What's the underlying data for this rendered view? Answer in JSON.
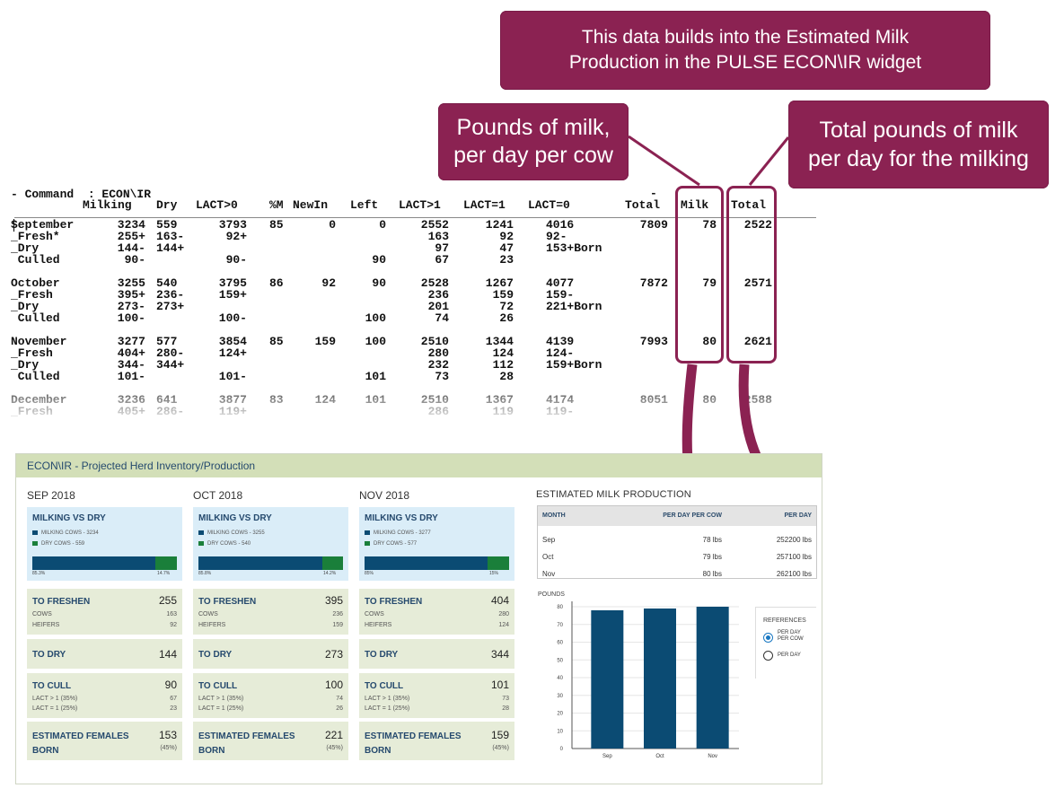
{
  "callouts": {
    "top": "This data builds into the Estimated Milk\nProduction in the PULSE ECON\\IR widget",
    "left": "Pounds of milk,\nper day per cow",
    "right": "Total pounds of milk\nper day for the milking"
  },
  "terminal": {
    "command": "- Command  : ECON\\IR",
    "dash": "-",
    "headers": [
      "Milking",
      "Dry",
      "LACT>0",
      "%M",
      "NewIn",
      "Left",
      "LACT>1",
      "LACT=1",
      "LACT=0",
      "Total",
      "Milk",
      "Total"
    ],
    "rows": [
      {
        "label": "September",
        "milking": "3234",
        "dry": "559",
        "lact0": "3793",
        "pm": "85",
        "newin": "0",
        "left": "0",
        "lact_gt1": "2552",
        "lact_eq1": "1241",
        "lact_eq0": "4016",
        "total": "7809",
        "milk": "78",
        "total2": "2522"
      },
      {
        "label": "_Fresh*",
        "milking": "255+",
        "dry": "163-",
        "lact0": "92+",
        "pm": "",
        "newin": "",
        "left": "",
        "lact_gt1": "163",
        "lact_eq1": "92",
        "lact_eq0": "92-",
        "total": "",
        "milk": "",
        "total2": ""
      },
      {
        "label": "_Dry",
        "milking": "144-",
        "dry": "144+",
        "lact0": "",
        "pm": "",
        "newin": "",
        "left": "",
        "lact_gt1": "97",
        "lact_eq1": "47",
        "lact_eq0": "153+Born",
        "total": "",
        "milk": "",
        "total2": ""
      },
      {
        "label": " Culled",
        "milking": "90-",
        "dry": "",
        "lact0": "90-",
        "pm": "",
        "newin": "",
        "left": "90",
        "lact_gt1": "67",
        "lact_eq1": "23",
        "lact_eq0": "",
        "total": "",
        "milk": "",
        "total2": ""
      },
      {
        "label": "October",
        "milking": "3255",
        "dry": "540",
        "lact0": "3795",
        "pm": "86",
        "newin": "92",
        "left": "90",
        "lact_gt1": "2528",
        "lact_eq1": "1267",
        "lact_eq0": "4077",
        "total": "7872",
        "milk": "79",
        "total2": "2571"
      },
      {
        "label": "_Fresh",
        "milking": "395+",
        "dry": "236-",
        "lact0": "159+",
        "pm": "",
        "newin": "",
        "left": "",
        "lact_gt1": "236",
        "lact_eq1": "159",
        "lact_eq0": "159-",
        "total": "",
        "milk": "",
        "total2": ""
      },
      {
        "label": "_Dry",
        "milking": "273-",
        "dry": "273+",
        "lact0": "",
        "pm": "",
        "newin": "",
        "left": "",
        "lact_gt1": "201",
        "lact_eq1": "72",
        "lact_eq0": "221+Born",
        "total": "",
        "milk": "",
        "total2": ""
      },
      {
        "label": " Culled",
        "milking": "100-",
        "dry": "",
        "lact0": "100-",
        "pm": "",
        "newin": "",
        "left": "100",
        "lact_gt1": "74",
        "lact_eq1": "26",
        "lact_eq0": "",
        "total": "",
        "milk": "",
        "total2": ""
      },
      {
        "label": "November",
        "milking": "3277",
        "dry": "577",
        "lact0": "3854",
        "pm": "85",
        "newin": "159",
        "left": "100",
        "lact_gt1": "2510",
        "lact_eq1": "1344",
        "lact_eq0": "4139",
        "total": "7993",
        "milk": "80",
        "total2": "2621"
      },
      {
        "label": "_Fresh",
        "milking": "404+",
        "dry": "280-",
        "lact0": "124+",
        "pm": "",
        "newin": "",
        "left": "",
        "lact_gt1": "280",
        "lact_eq1": "124",
        "lact_eq0": "124-",
        "total": "",
        "milk": "",
        "total2": ""
      },
      {
        "label": "_Dry",
        "milking": "344-",
        "dry": "344+",
        "lact0": "",
        "pm": "",
        "newin": "",
        "left": "",
        "lact_gt1": "232",
        "lact_eq1": "112",
        "lact_eq0": "159+Born",
        "total": "",
        "milk": "",
        "total2": ""
      },
      {
        "label": " Culled",
        "milking": "101-",
        "dry": "",
        "lact0": "101-",
        "pm": "",
        "newin": "",
        "left": "101",
        "lact_gt1": "73",
        "lact_eq1": "28",
        "lact_eq0": "",
        "total": "",
        "milk": "",
        "total2": ""
      },
      {
        "label": "December",
        "milking": "3236",
        "dry": "641",
        "lact0": "3877",
        "pm": "83",
        "newin": "124",
        "left": "101",
        "lact_gt1": "2510",
        "lact_eq1": "1367",
        "lact_eq0": "4174",
        "total": "8051",
        "milk": "80",
        "total2": "2588"
      },
      {
        "label": "_Fresh",
        "milking": "405+",
        "dry": "286-",
        "lact0": "119+",
        "pm": "",
        "newin": "",
        "left": "",
        "lact_gt1": "286",
        "lact_eq1": "119",
        "lact_eq0": "119-",
        "total": "",
        "milk": "",
        "total2": ""
      }
    ]
  },
  "widget": {
    "title": "ECON\\IR - Projected Herd Inventory/Production",
    "months": [
      {
        "title": "SEP 2018",
        "milking_vs_dry": {
          "title": "MILKING VS DRY",
          "milking_label": "MILKING COWS - 3234",
          "dry_label": "DRY COWS - 559",
          "milking_pct_label": "85.3%",
          "dry_pct_label": "14.7%",
          "milking_share": 0.853
        },
        "to_freshen": {
          "title": "TO FRESHEN",
          "value": "255",
          "cows_label": "COWS",
          "cows": "163",
          "heifers_label": "HEIFERS",
          "heifers": "92"
        },
        "to_dry": {
          "title": "TO DRY",
          "value": "144"
        },
        "to_cull": {
          "title": "TO CULL",
          "value": "90",
          "lact_gt1_label": "LACT > 1 (35%)",
          "lact_gt1": "67",
          "lact_eq1_label": "LACT = 1 (25%)",
          "lact_eq1": "23"
        },
        "est_females": {
          "title1": "ESTIMATED FEMALES",
          "title2": "BORN",
          "value": "153",
          "pct": "(45%)"
        }
      },
      {
        "title": "OCT 2018",
        "milking_vs_dry": {
          "title": "MILKING VS DRY",
          "milking_label": "MILKING COWS - 3255",
          "dry_label": "DRY COWS - 540",
          "milking_pct_label": "85.8%",
          "dry_pct_label": "14.2%",
          "milking_share": 0.858
        },
        "to_freshen": {
          "title": "TO FRESHEN",
          "value": "395",
          "cows_label": "COWS",
          "cows": "236",
          "heifers_label": "HEIFERS",
          "heifers": "159"
        },
        "to_dry": {
          "title": "TO DRY",
          "value": "273"
        },
        "to_cull": {
          "title": "TO CULL",
          "value": "100",
          "lact_gt1_label": "LACT > 1 (35%)",
          "lact_gt1": "74",
          "lact_eq1_label": "LACT = 1 (25%)",
          "lact_eq1": "26"
        },
        "est_females": {
          "title1": "ESTIMATED FEMALES",
          "title2": "BORN",
          "value": "221",
          "pct": "(45%)"
        }
      },
      {
        "title": "NOV 2018",
        "milking_vs_dry": {
          "title": "MILKING VS DRY",
          "milking_label": "MILKING COWS - 3277",
          "dry_label": "DRY COWS - 577",
          "milking_pct_label": "85%",
          "dry_pct_label": "15%",
          "milking_share": 0.85
        },
        "to_freshen": {
          "title": "TO FRESHEN",
          "value": "404",
          "cows_label": "COWS",
          "cows": "280",
          "heifers_label": "HEIFERS",
          "heifers": "124"
        },
        "to_dry": {
          "title": "TO DRY",
          "value": "344"
        },
        "to_cull": {
          "title": "TO CULL",
          "value": "101",
          "lact_gt1_label": "LACT > 1 (35%)",
          "lact_gt1": "73",
          "lact_eq1_label": "LACT = 1 (25%)",
          "lact_eq1": "28"
        },
        "est_females": {
          "title1": "ESTIMATED FEMALES",
          "title2": "BORN",
          "value": "159",
          "pct": "(45%)"
        }
      }
    ],
    "estimated": {
      "title": "ESTIMATED MILK PRODUCTION",
      "headers": {
        "month": "MONTH",
        "per_cow": "PER DAY PER COW",
        "per_day": "PER DAY"
      },
      "rows": [
        {
          "month": "Sep",
          "per_cow": "78 lbs",
          "per_day": "252200 lbs"
        },
        {
          "month": "Oct",
          "per_cow": "79 lbs",
          "per_day": "257100 lbs"
        },
        {
          "month": "Nov",
          "per_cow": "80 lbs",
          "per_day": "262100 lbs"
        }
      ]
    },
    "references": {
      "title": "REFERENCES",
      "options": [
        {
          "label": "PER DAY PER COW",
          "selected": true
        },
        {
          "label": "PER DAY",
          "selected": false
        }
      ]
    }
  },
  "colors": {
    "callout": "#8b2252",
    "milking_bar": "#0b4b73",
    "dry_bar": "#1a7f3a",
    "chart_bar": "#0b4b73",
    "widget_header": "#d3dfb8"
  },
  "chart_data": {
    "type": "bar",
    "ylabel": "POUNDS",
    "categories": [
      "Sep",
      "Oct",
      "Nov"
    ],
    "values": [
      78,
      79,
      80
    ],
    "ylim": [
      0,
      80
    ],
    "yticks": [
      "0",
      "10",
      "20",
      "30",
      "40",
      "50",
      "60",
      "70",
      "80"
    ],
    "grid": true
  }
}
